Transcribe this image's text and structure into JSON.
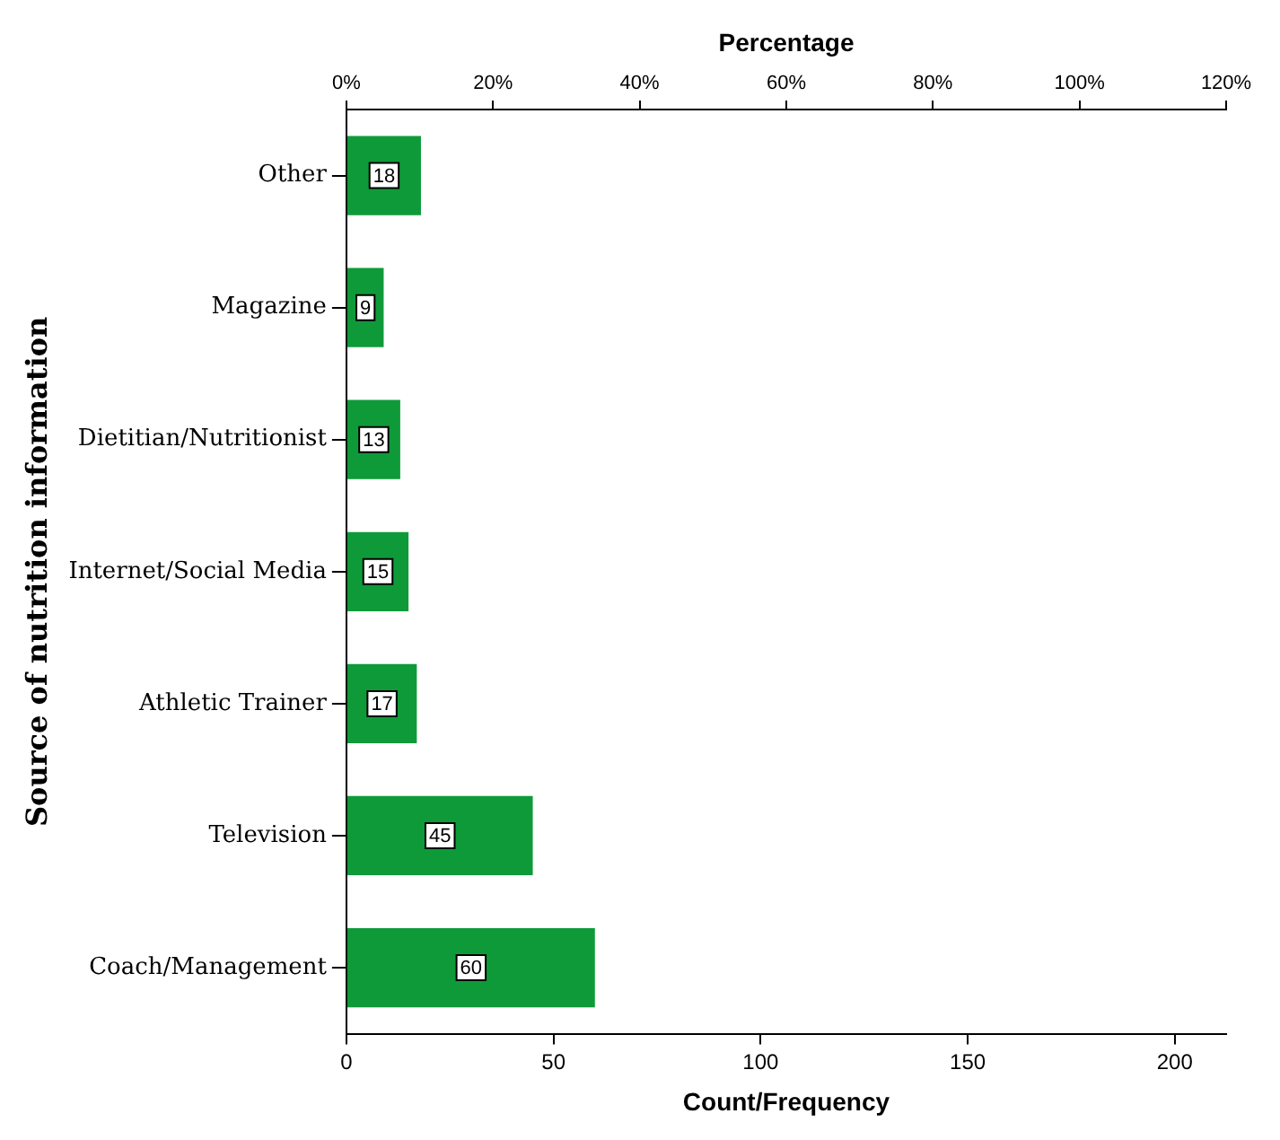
{
  "chart_data": {
    "type": "bar",
    "orientation": "horizontal",
    "xlabel": "Count/Frequency",
    "x2label": "Percentage",
    "ylabel": "Source of nutrition information",
    "categories": [
      "Other",
      "Magazine",
      "Dietitian/Nutritionist",
      "Internet/Social Media",
      "Athletic Trainer",
      "Television",
      "Coach/Management"
    ],
    "values": [
      18,
      9,
      13,
      15,
      17,
      45,
      60
    ],
    "color": "#0f9a3a",
    "data_labels": true,
    "xlim": [
      0,
      212.4
    ],
    "xticks": [
      0,
      50,
      100,
      150,
      200
    ],
    "x2lim": [
      0,
      120
    ],
    "x2ticks": [
      {
        "value": 0,
        "label": "0%"
      },
      {
        "value": 20,
        "label": "20%"
      },
      {
        "value": 40,
        "label": "40%"
      },
      {
        "value": 60,
        "label": "60%"
      },
      {
        "value": 80,
        "label": "80%"
      },
      {
        "value": 100,
        "label": "100%"
      },
      {
        "value": 120,
        "label": "120%"
      }
    ],
    "grid": false,
    "legend": false
  }
}
